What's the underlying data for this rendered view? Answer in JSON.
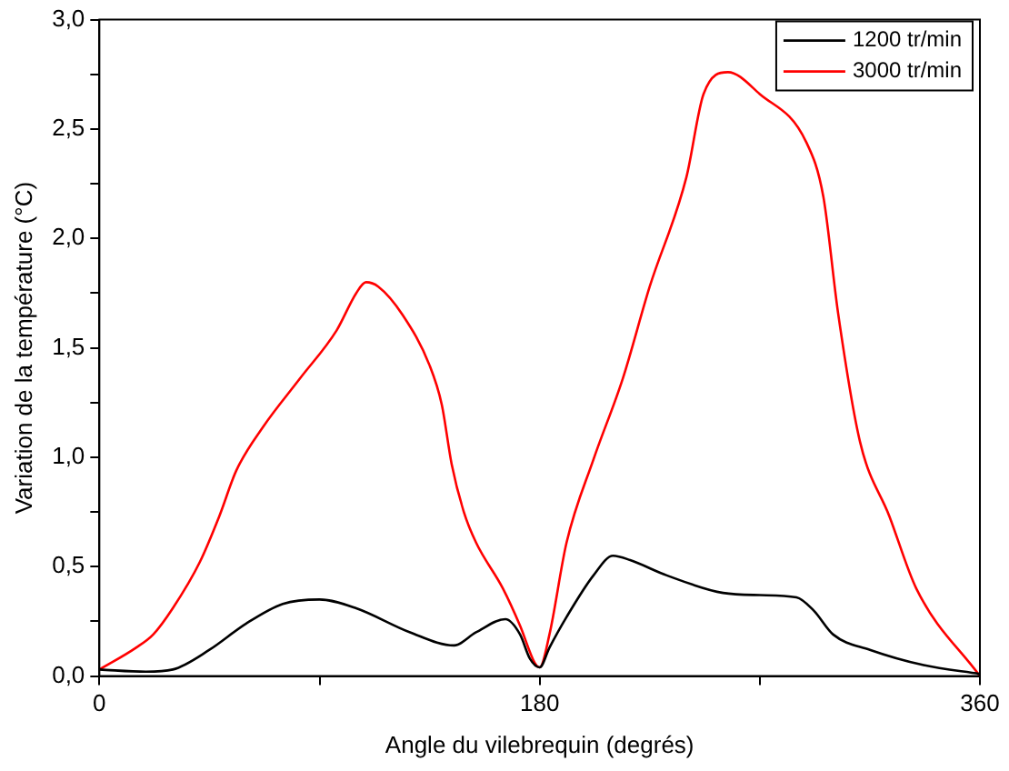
{
  "chart_data": {
    "type": "line",
    "xlabel": "Angle du vilebrequin (degrés)",
    "ylabel": "Variation de la température (°C)",
    "xlim": [
      0,
      360
    ],
    "xticks": [
      0,
      {
        "value": 90,
        "label": null
      },
      180,
      {
        "value": 270,
        "label": null
      },
      360
    ],
    "ylim": [
      0,
      3
    ],
    "yticks": [
      {
        "value": 0,
        "label": "0,0"
      },
      {
        "value": 0.25,
        "label": null
      },
      {
        "value": 0.5,
        "label": "0,5"
      },
      {
        "value": 0.75,
        "label": null
      },
      {
        "value": 1,
        "label": "1,0"
      },
      {
        "value": 1.25,
        "label": null
      },
      {
        "value": 1.5,
        "label": "1,5"
      },
      {
        "value": 1.75,
        "label": null
      },
      {
        "value": 2,
        "label": "2,0"
      },
      {
        "value": 2.25,
        "label": null
      },
      {
        "value": 2.5,
        "label": "2,5"
      },
      {
        "value": 2.75,
        "label": null
      },
      {
        "value": 3,
        "label": "3,0"
      }
    ],
    "grid": false,
    "legend": "top right",
    "marker": "none",
    "line_style": "solid",
    "series": [
      {
        "name": "1200 tr/min",
        "color": "#000000",
        "x": [
          0,
          19,
          30,
          45,
          60,
          75,
          90,
          105,
          127,
          145,
          154,
          166,
          172,
          176,
          180,
          184,
          191,
          202,
          210,
          217,
          232,
          255,
          270,
          285,
          292,
          300,
          315,
          337,
          360
        ],
        "values": [
          0.03,
          0.02,
          0.03,
          0.12,
          0.24,
          0.33,
          0.35,
          0.31,
          0.2,
          0.14,
          0.2,
          0.26,
          0.19,
          0.08,
          0.04,
          0.13,
          0.27,
          0.46,
          0.55,
          0.53,
          0.46,
          0.38,
          0.37,
          0.36,
          0.3,
          0.19,
          0.12,
          0.05,
          0.01
        ]
      },
      {
        "name": "3000 tr/min",
        "color": "#ff0000",
        "x": [
          0,
          15,
          22,
          30,
          41,
          49,
          56,
          67,
          82,
          97,
          105,
          109,
          114,
          124,
          135,
          140,
          144,
          149,
          154,
          165,
          172,
          178,
          180,
          184,
          191,
          202,
          214,
          225,
          240,
          247,
          257,
          270,
          289,
          296,
          302,
          311,
          323,
          334,
          360
        ],
        "values": [
          0.03,
          0.13,
          0.19,
          0.31,
          0.52,
          0.73,
          0.94,
          1.14,
          1.36,
          1.58,
          1.75,
          1.8,
          1.78,
          1.65,
          1.42,
          1.24,
          0.97,
          0.75,
          0.61,
          0.4,
          0.23,
          0.06,
          0.04,
          0.19,
          0.61,
          0.99,
          1.36,
          1.78,
          2.28,
          2.66,
          2.76,
          2.66,
          2.44,
          2.19,
          1.66,
          1.07,
          0.73,
          0.4,
          0
        ]
      }
    ]
  }
}
